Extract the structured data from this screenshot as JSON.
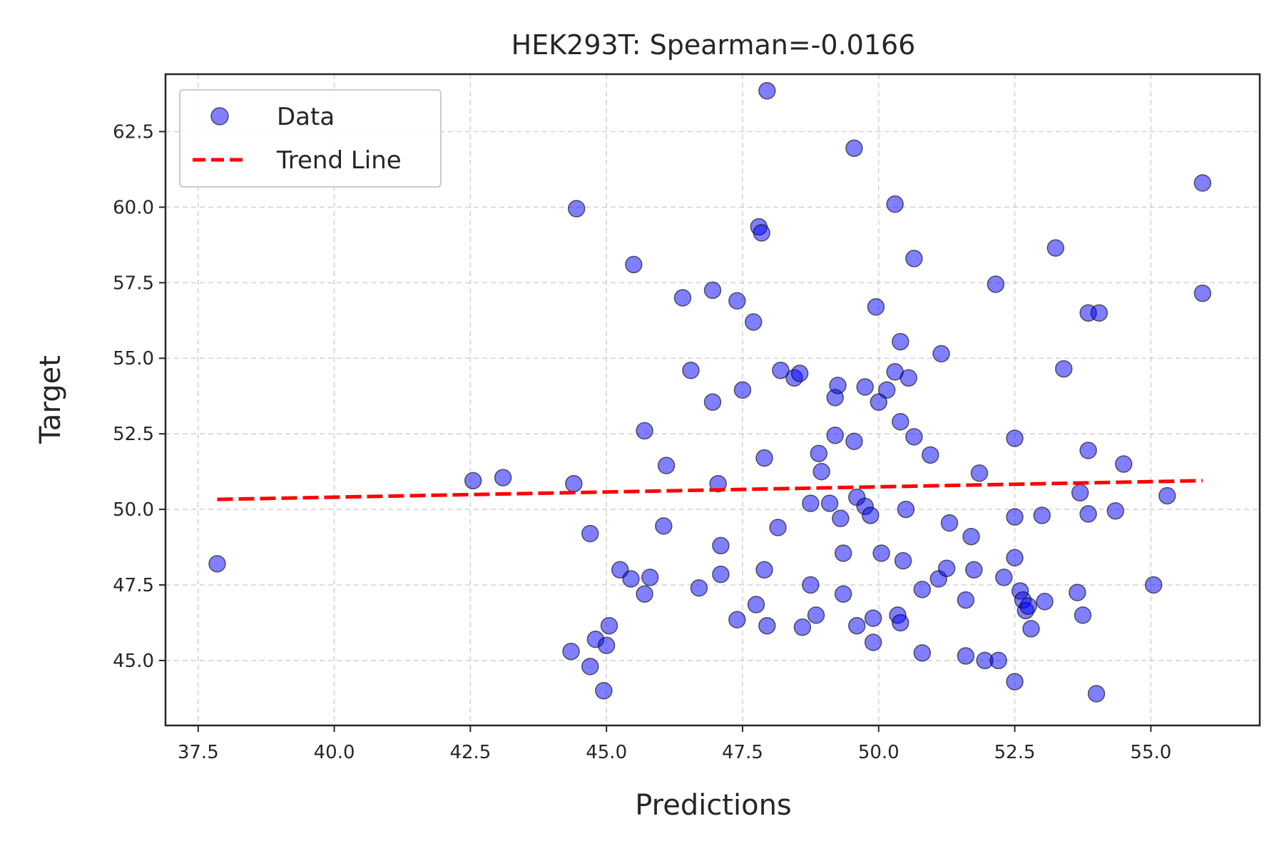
{
  "chart_data": {
    "type": "scatter",
    "title": "HEK293T: Spearman=-0.0166",
    "xlabel": "Predictions",
    "ylabel": "Target",
    "xlim": [
      36.9,
      57.0
    ],
    "ylim": [
      42.85,
      64.4
    ],
    "xticks": [
      37.5,
      40.0,
      42.5,
      45.0,
      47.5,
      50.0,
      52.5,
      55.0
    ],
    "xtick_labels": [
      "37.5",
      "40.0",
      "42.5",
      "45.0",
      "47.5",
      "50.0",
      "52.5",
      "55.0"
    ],
    "yticks": [
      45.0,
      47.5,
      50.0,
      52.5,
      55.0,
      57.5,
      60.0,
      62.5
    ],
    "ytick_labels": [
      "45.0",
      "47.5",
      "50.0",
      "52.5",
      "55.0",
      "57.5",
      "60.0",
      "62.5"
    ],
    "grid": true,
    "legend_position": "top-left",
    "series": [
      {
        "name": "Data",
        "kind": "scatter",
        "color": "#0000ff",
        "points": [
          [
            37.85,
            48.2
          ],
          [
            42.55,
            50.95
          ],
          [
            43.1,
            51.05
          ],
          [
            44.4,
            50.85
          ],
          [
            44.45,
            59.95
          ],
          [
            44.35,
            45.3
          ],
          [
            44.7,
            49.2
          ],
          [
            44.7,
            44.8
          ],
          [
            44.8,
            45.7
          ],
          [
            45.0,
            45.5
          ],
          [
            44.95,
            44.0
          ],
          [
            45.05,
            46.15
          ],
          [
            45.25,
            48.0
          ],
          [
            45.45,
            47.7
          ],
          [
            45.5,
            58.1
          ],
          [
            45.7,
            52.6
          ],
          [
            45.7,
            47.2
          ],
          [
            45.8,
            47.75
          ],
          [
            46.1,
            51.45
          ],
          [
            46.05,
            49.45
          ],
          [
            46.4,
            57.0
          ],
          [
            46.55,
            54.6
          ],
          [
            46.7,
            47.4
          ],
          [
            46.95,
            53.55
          ],
          [
            46.95,
            57.25
          ],
          [
            47.05,
            50.85
          ],
          [
            47.1,
            48.8
          ],
          [
            47.1,
            47.85
          ],
          [
            47.4,
            46.35
          ],
          [
            47.4,
            56.9
          ],
          [
            47.5,
            53.95
          ],
          [
            47.7,
            56.2
          ],
          [
            47.75,
            46.85
          ],
          [
            47.8,
            59.35
          ],
          [
            47.85,
            59.15
          ],
          [
            47.9,
            51.7
          ],
          [
            47.9,
            48.0
          ],
          [
            47.95,
            46.15
          ],
          [
            47.95,
            63.85
          ],
          [
            48.15,
            49.4
          ],
          [
            48.2,
            54.6
          ],
          [
            48.45,
            54.35
          ],
          [
            48.55,
            54.5
          ],
          [
            48.6,
            46.1
          ],
          [
            48.75,
            47.5
          ],
          [
            48.75,
            50.2
          ],
          [
            48.85,
            46.5
          ],
          [
            48.9,
            51.85
          ],
          [
            48.95,
            51.25
          ],
          [
            49.1,
            50.2
          ],
          [
            49.2,
            53.7
          ],
          [
            49.2,
            52.45
          ],
          [
            49.25,
            54.1
          ],
          [
            49.3,
            49.7
          ],
          [
            49.35,
            48.55
          ],
          [
            49.35,
            47.2
          ],
          [
            49.55,
            61.95
          ],
          [
            49.55,
            52.25
          ],
          [
            49.6,
            50.4
          ],
          [
            49.6,
            46.15
          ],
          [
            49.75,
            54.05
          ],
          [
            49.75,
            50.1
          ],
          [
            49.85,
            49.8
          ],
          [
            49.9,
            46.4
          ],
          [
            49.9,
            45.6
          ],
          [
            49.95,
            56.7
          ],
          [
            50.0,
            53.55
          ],
          [
            50.05,
            48.55
          ],
          [
            50.15,
            53.95
          ],
          [
            50.3,
            54.55
          ],
          [
            50.3,
            60.1
          ],
          [
            50.35,
            46.5
          ],
          [
            50.4,
            55.55
          ],
          [
            50.4,
            52.9
          ],
          [
            50.4,
            46.25
          ],
          [
            50.45,
            48.3
          ],
          [
            50.5,
            50.0
          ],
          [
            50.55,
            54.35
          ],
          [
            50.65,
            52.4
          ],
          [
            50.65,
            58.3
          ],
          [
            50.8,
            47.35
          ],
          [
            50.8,
            45.25
          ],
          [
            50.95,
            51.8
          ],
          [
            51.1,
            47.7
          ],
          [
            51.15,
            55.15
          ],
          [
            51.25,
            48.05
          ],
          [
            51.3,
            49.55
          ],
          [
            51.6,
            47.0
          ],
          [
            51.6,
            45.15
          ],
          [
            51.7,
            49.1
          ],
          [
            51.75,
            48.0
          ],
          [
            51.85,
            51.2
          ],
          [
            51.95,
            45.0
          ],
          [
            52.15,
            57.45
          ],
          [
            52.2,
            45.0
          ],
          [
            52.3,
            47.75
          ],
          [
            52.5,
            52.35
          ],
          [
            52.5,
            49.75
          ],
          [
            52.5,
            48.4
          ],
          [
            52.5,
            44.3
          ],
          [
            52.6,
            47.3
          ],
          [
            52.65,
            47.0
          ],
          [
            52.7,
            46.65
          ],
          [
            52.75,
            46.8
          ],
          [
            52.8,
            46.05
          ],
          [
            53.0,
            49.8
          ],
          [
            53.05,
            46.95
          ],
          [
            53.25,
            58.65
          ],
          [
            53.4,
            54.65
          ],
          [
            53.65,
            47.25
          ],
          [
            53.7,
            50.55
          ],
          [
            53.75,
            46.5
          ],
          [
            53.85,
            56.5
          ],
          [
            53.85,
            51.95
          ],
          [
            53.85,
            49.85
          ],
          [
            54.05,
            56.5
          ],
          [
            54.0,
            43.9
          ],
          [
            54.35,
            49.95
          ],
          [
            54.5,
            51.5
          ],
          [
            55.05,
            47.5
          ],
          [
            55.3,
            50.45
          ],
          [
            55.95,
            60.8
          ],
          [
            55.95,
            57.15
          ]
        ]
      },
      {
        "name": "Trend Line",
        "kind": "line",
        "color": "#ff0000",
        "x": [
          37.85,
          55.95
        ],
        "y": [
          50.33,
          50.95
        ]
      }
    ]
  }
}
